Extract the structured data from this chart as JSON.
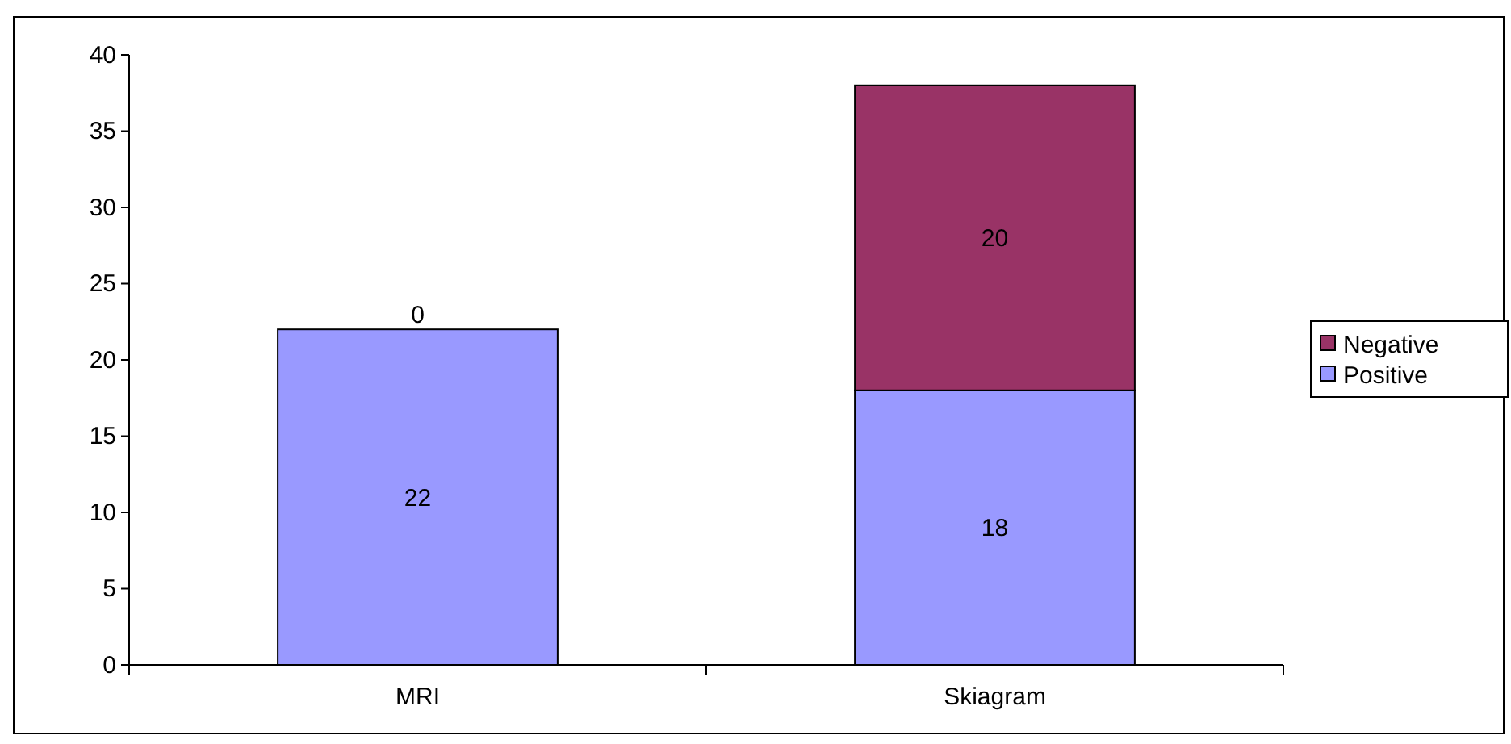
{
  "chart_data": {
    "type": "bar",
    "categories": [
      "MRI",
      "Skiagram"
    ],
    "stacked": true,
    "series": [
      {
        "name": "Positive",
        "color": "#9999ff",
        "values": [
          22,
          18
        ]
      },
      {
        "name": "Negative",
        "color": "#993366",
        "values": [
          0,
          20
        ]
      }
    ],
    "ylim": [
      0,
      40
    ],
    "yticks": [
      0,
      5,
      10,
      15,
      20,
      25,
      30,
      35,
      40
    ],
    "grid": false,
    "legend": "right",
    "data_labels": true
  }
}
